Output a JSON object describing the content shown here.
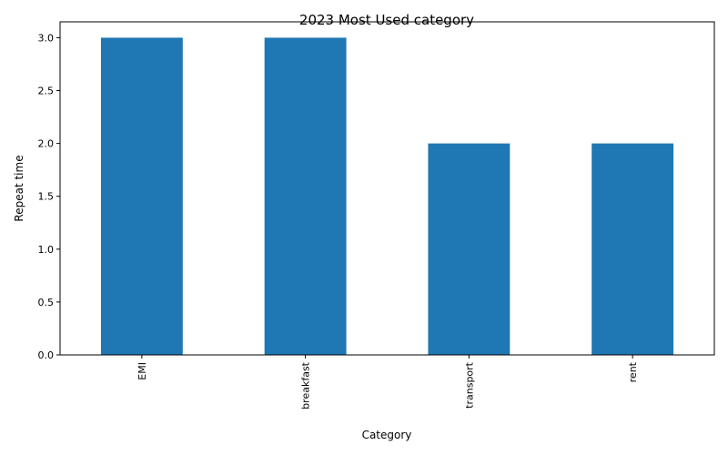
{
  "chart_data": {
    "type": "bar",
    "title": "2023 Most Used category",
    "xlabel": "Category",
    "ylabel": "Repeat time",
    "categories": [
      "EMI",
      "breakfast",
      "transport",
      "rent"
    ],
    "values": [
      3,
      3,
      2,
      2
    ],
    "ylim": [
      0,
      3.15
    ],
    "yticks": [
      "0.0",
      "0.5",
      "1.0",
      "1.5",
      "2.0",
      "2.5",
      "3.0"
    ],
    "ytick_values": [
      0,
      0.5,
      1.0,
      1.5,
      2.0,
      2.5,
      3.0
    ],
    "grid": false,
    "legend": "none",
    "bar_color": "#1f77b4"
  }
}
